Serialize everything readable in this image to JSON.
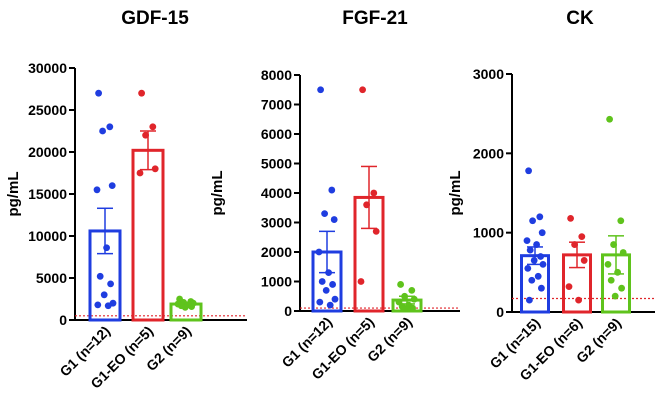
{
  "chart_data": [
    {
      "type": "bar",
      "title": "GDF-15",
      "ylabel": "pg/mL",
      "xlabel": "",
      "ylim": [
        0,
        30000
      ],
      "yticks": [
        0,
        5000,
        10000,
        15000,
        20000,
        25000,
        30000
      ],
      "reference_line": 500,
      "categories": [
        "G1 (n=12)",
        "G1-EO (n=5)",
        "G2 (n=9)"
      ],
      "colors": [
        "#1f3de0",
        "#e0252b",
        "#5fc31c"
      ],
      "means": [
        10600,
        20200,
        1900
      ],
      "errors": [
        2700,
        2300,
        200
      ],
      "points": [
        [
          27000,
          23000,
          22500,
          16000,
          15500,
          8600,
          5200,
          4300,
          3000,
          2000,
          1800,
          1700
        ],
        [
          27000,
          23000,
          22000,
          18000,
          17500
        ],
        [
          2500,
          2200,
          2100,
          2000,
          1900,
          1800,
          1700,
          1600,
          1500
        ]
      ]
    },
    {
      "type": "bar",
      "title": "FGF-21",
      "ylabel": "pg/mL",
      "xlabel": "",
      "ylim": [
        0,
        8000
      ],
      "yticks": [
        0,
        1000,
        2000,
        3000,
        4000,
        5000,
        6000,
        7000,
        8000
      ],
      "reference_line": 100,
      "categories": [
        "G1 (n=12)",
        "G1-EO (n=5)",
        "G2 (n=9)"
      ],
      "colors": [
        "#1f3de0",
        "#e0252b",
        "#5fc31c"
      ],
      "means": [
        2000,
        3850,
        370
      ],
      "errors": [
        700,
        1050,
        130
      ],
      "points": [
        [
          7500,
          4100,
          3300,
          3100,
          2000,
          1300,
          1000,
          900,
          700,
          400,
          300,
          200
        ],
        [
          7500,
          4000,
          3600,
          2700,
          1000
        ],
        [
          900,
          700,
          500,
          400,
          300,
          200,
          150,
          100,
          80
        ]
      ]
    },
    {
      "type": "bar",
      "title": "CK",
      "ylabel": "pg/mL",
      "xlabel": "",
      "ylim": [
        0,
        3000
      ],
      "yticks": [
        0,
        1000,
        2000,
        3000
      ],
      "reference_line": 170,
      "categories": [
        "G1 (n=15)",
        "G1-EO (n=6)",
        "G2 (n=9)"
      ],
      "colors": [
        "#1f3de0",
        "#e0252b",
        "#5fc31c"
      ],
      "means": [
        710,
        720,
        720
      ],
      "errors": [
        110,
        160,
        240
      ],
      "points": [
        [
          1780,
          1200,
          1150,
          1000,
          900,
          850,
          780,
          700,
          650,
          600,
          550,
          450,
          400,
          300,
          150
        ],
        [
          1180,
          950,
          850,
          650,
          320,
          150
        ],
        [
          2430,
          1150,
          850,
          750,
          600,
          500,
          400,
          300,
          200
        ]
      ]
    }
  ]
}
